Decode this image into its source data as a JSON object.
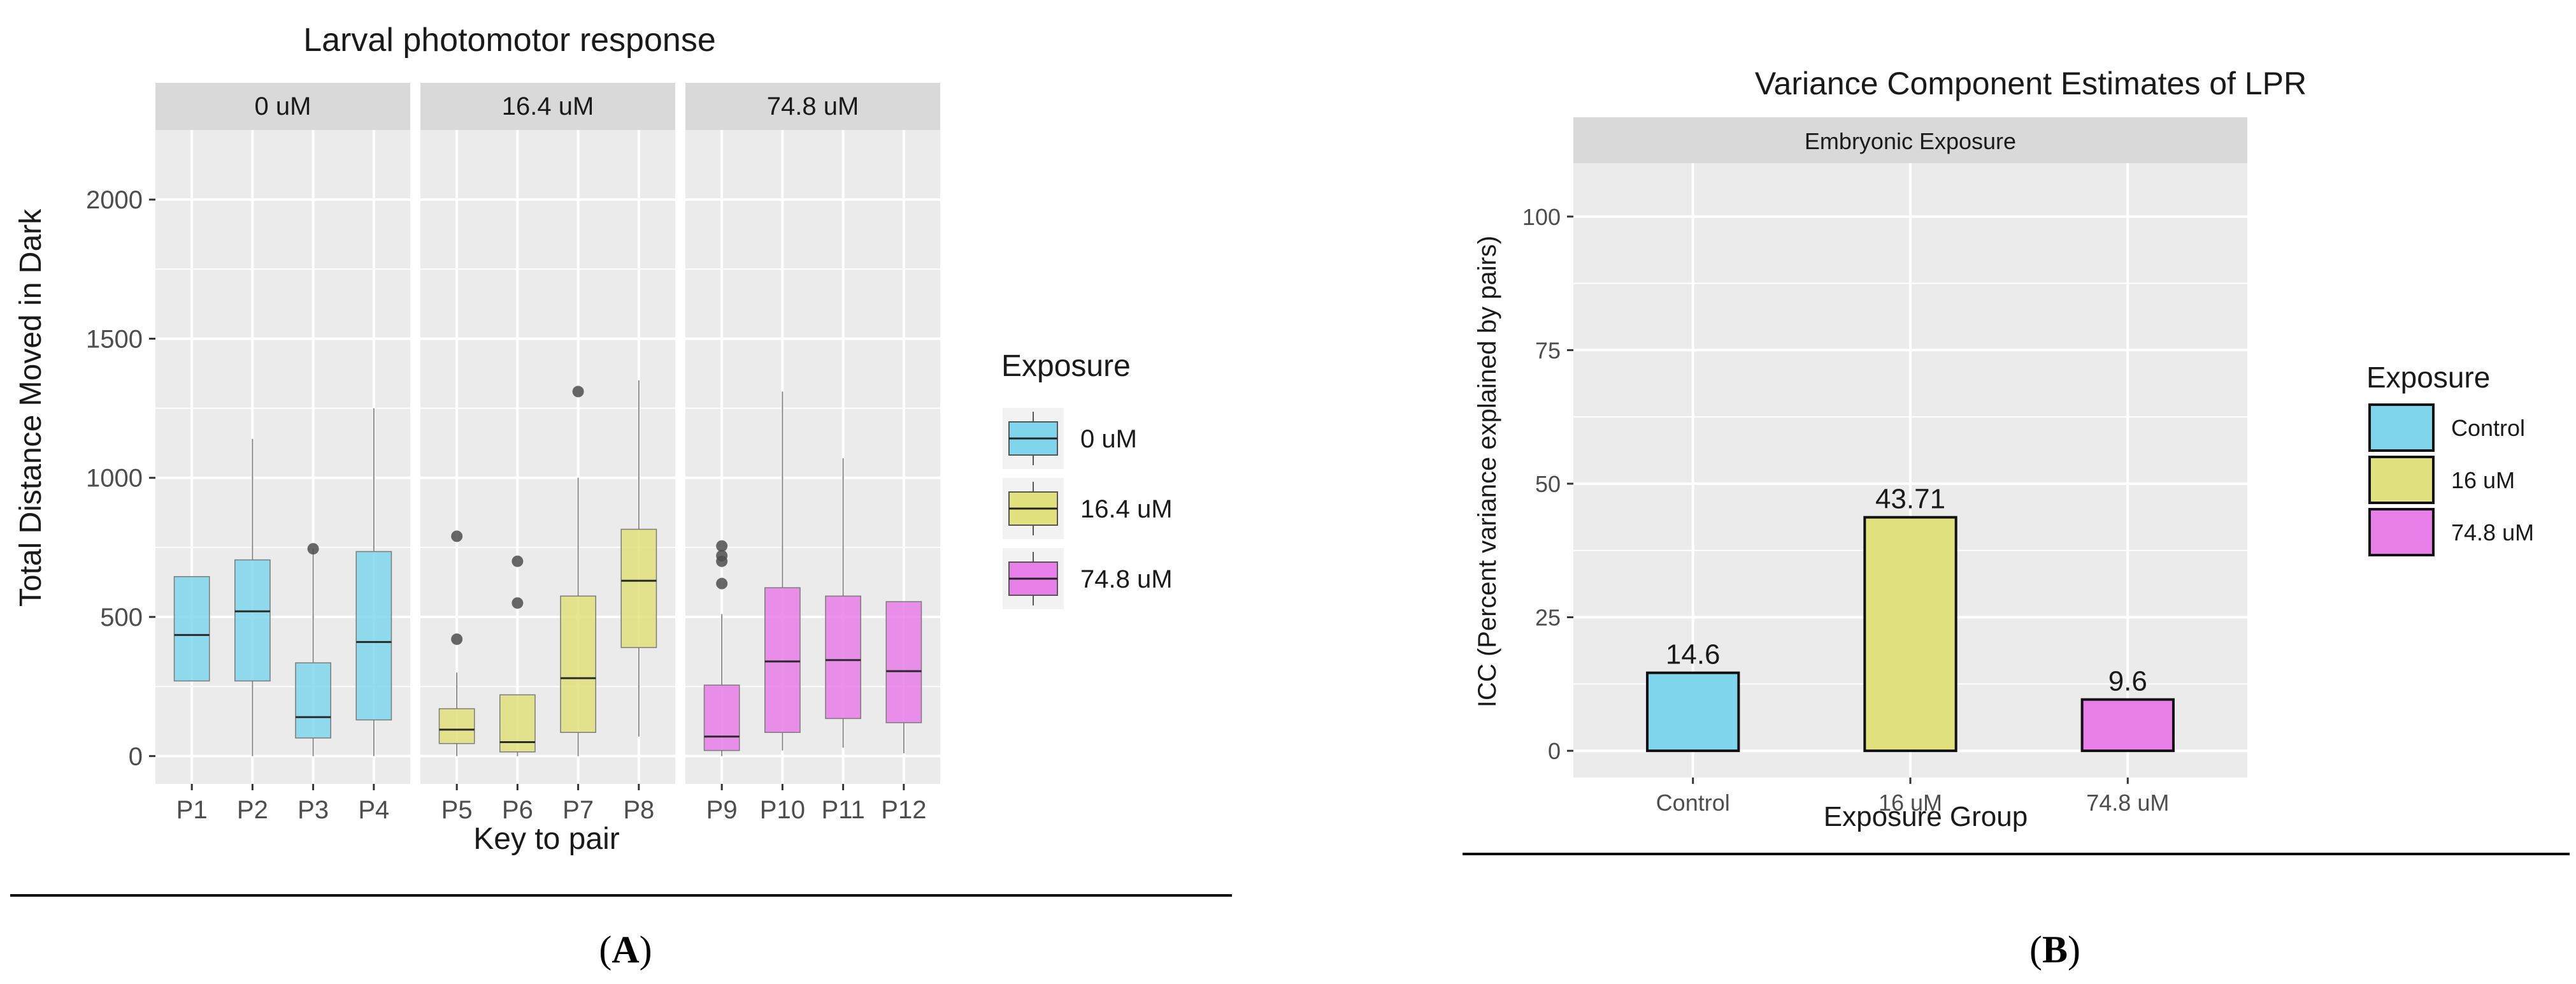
{
  "colors": {
    "c0": "#7fd6ec",
    "c16": "#e1e17d",
    "c74": "#e87ee8",
    "panel_bg": "#ebebeb",
    "strip_bg": "#d9d9d9",
    "grid": "#ffffff"
  },
  "panel_labels": {
    "a": "A",
    "b": "B"
  },
  "chart_data": [
    {
      "type": "boxplot",
      "title": "Larval photomotor response",
      "xlabel": "Key to pair",
      "ylabel": "Total Distance Moved in Dark",
      "ylim": [
        -100,
        2250
      ],
      "yticks": [
        0,
        500,
        1000,
        1500,
        2000
      ],
      "facets": [
        {
          "label": "0 uM",
          "color_key": "c0",
          "boxes": [
            {
              "name": "P1",
              "wlo": 270,
              "q1": 270,
              "med": 435,
              "q3": 645,
              "whi": 645,
              "outliers": []
            },
            {
              "name": "P2",
              "wlo": 0,
              "q1": 270,
              "med": 520,
              "q3": 705,
              "whi": 1140,
              "outliers": []
            },
            {
              "name": "P3",
              "wlo": 0,
              "q1": 65,
              "med": 140,
              "q3": 335,
              "whi": 745,
              "outliers": [
                745
              ]
            },
            {
              "name": "P4",
              "wlo": 0,
              "q1": 130,
              "med": 410,
              "q3": 735,
              "whi": 1250,
              "outliers": []
            }
          ]
        },
        {
          "label": "16.4 uM",
          "color_key": "c16",
          "boxes": [
            {
              "name": "P5",
              "wlo": 0,
              "q1": 45,
              "med": 95,
              "q3": 170,
              "whi": 300,
              "outliers": [
                420,
                790
              ]
            },
            {
              "name": "P6",
              "wlo": 0,
              "q1": 15,
              "med": 50,
              "q3": 220,
              "whi": 220,
              "outliers": [
                550,
                700
              ]
            },
            {
              "name": "P7",
              "wlo": 0,
              "q1": 85,
              "med": 280,
              "q3": 575,
              "whi": 1000,
              "outliers": [
                1310
              ]
            },
            {
              "name": "P8",
              "wlo": 70,
              "q1": 390,
              "med": 630,
              "q3": 815,
              "whi": 1350,
              "outliers": []
            }
          ]
        },
        {
          "label": "74.8 uM",
          "color_key": "c74",
          "boxes": [
            {
              "name": "P9",
              "wlo": 0,
              "q1": 20,
              "med": 70,
              "q3": 255,
              "whi": 510,
              "outliers": [
                620,
                700,
                720,
                755
              ]
            },
            {
              "name": "P10",
              "wlo": 20,
              "q1": 85,
              "med": 340,
              "q3": 605,
              "whi": 1310,
              "outliers": []
            },
            {
              "name": "P11",
              "wlo": 30,
              "q1": 135,
              "med": 345,
              "q3": 575,
              "whi": 1070,
              "outliers": []
            },
            {
              "name": "P12",
              "wlo": 10,
              "q1": 120,
              "med": 305,
              "q3": 555,
              "whi": 555,
              "outliers": []
            }
          ]
        }
      ],
      "legend": {
        "title": "Exposure",
        "entries": [
          "0 uM",
          "16.4 uM",
          "74.8 uM"
        ],
        "color_keys": [
          "c0",
          "c16",
          "c74"
        ],
        "position": "right"
      }
    },
    {
      "type": "bar",
      "title": "Variance Component Estimates of LPR",
      "strip": "Embryonic Exposure",
      "xlabel": "Exposure Group",
      "ylabel": "ICC (Percent variance explained by pairs)",
      "ylim": [
        -5,
        110
      ],
      "yticks": [
        0,
        25,
        50,
        75,
        100
      ],
      "categories": [
        "Control",
        "16 uM",
        "74.8 uM"
      ],
      "values": [
        14.6,
        43.71,
        9.6
      ],
      "value_labels": [
        "14.6",
        "43.71",
        "9.6"
      ],
      "color_keys": [
        "c0",
        "c16",
        "c74"
      ],
      "legend": {
        "title": "Exposure",
        "entries": [
          "Control",
          "16 uM",
          "74.8 uM"
        ],
        "color_keys": [
          "c0",
          "c16",
          "c74"
        ],
        "position": "right"
      }
    }
  ]
}
